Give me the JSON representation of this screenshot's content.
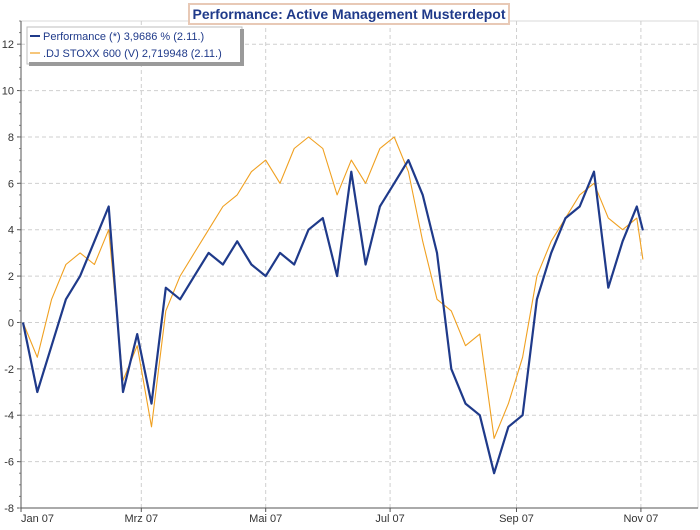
{
  "chart_data": {
    "type": "line",
    "title": "Performance: Active Management Musterdepot",
    "xlabel": "",
    "ylabel": "",
    "ylim": [
      -8,
      13
    ],
    "yticks": [
      -8,
      -6,
      -4,
      -2,
      0,
      2,
      4,
      6,
      8,
      10,
      12
    ],
    "x_tick_labels": [
      "Jan 07",
      "Mrz 07",
      "Mai 07",
      "Jul 07",
      "Sep 07",
      "Nov 07"
    ],
    "grid": true,
    "legend_position": "top-left",
    "series": [
      {
        "name": "Performance (*) 3,9686 % (2.11.)",
        "color": "#1f3a8a",
        "x": [
          "2007-01-02",
          "2007-01-09",
          "2007-01-16",
          "2007-01-23",
          "2007-01-30",
          "2007-02-06",
          "2007-02-13",
          "2007-02-20",
          "2007-02-27",
          "2007-03-06",
          "2007-03-13",
          "2007-03-20",
          "2007-03-27",
          "2007-04-03",
          "2007-04-10",
          "2007-04-17",
          "2007-04-24",
          "2007-05-01",
          "2007-05-08",
          "2007-05-15",
          "2007-05-22",
          "2007-05-29",
          "2007-06-05",
          "2007-06-12",
          "2007-06-19",
          "2007-06-26",
          "2007-07-03",
          "2007-07-10",
          "2007-07-17",
          "2007-07-24",
          "2007-07-31",
          "2007-08-07",
          "2007-08-14",
          "2007-08-21",
          "2007-08-28",
          "2007-09-04",
          "2007-09-11",
          "2007-09-18",
          "2007-09-25",
          "2007-10-02",
          "2007-10-09",
          "2007-10-16",
          "2007-10-23",
          "2007-10-30",
          "2007-11-02"
        ],
        "values": [
          0.0,
          -3.0,
          -1.0,
          1.0,
          2.0,
          3.5,
          5.0,
          -3.0,
          -0.5,
          -3.5,
          1.5,
          1.0,
          2.0,
          3.0,
          2.5,
          3.5,
          2.5,
          2.0,
          3.0,
          2.5,
          4.0,
          4.5,
          2.0,
          6.5,
          2.5,
          5.0,
          6.0,
          7.0,
          5.5,
          3.0,
          -2.0,
          -3.5,
          -4.0,
          -6.5,
          -4.5,
          -4.0,
          1.0,
          3.0,
          4.5,
          5.0,
          6.5,
          1.5,
          3.5,
          5.0,
          3.97
        ]
      },
      {
        "name": ".DJ STOXX 600 (V) 2,719948 (2.11.)",
        "color": "#f0a020",
        "x": [
          "2007-01-02",
          "2007-01-09",
          "2007-01-16",
          "2007-01-23",
          "2007-01-30",
          "2007-02-06",
          "2007-02-13",
          "2007-02-20",
          "2007-02-27",
          "2007-03-06",
          "2007-03-13",
          "2007-03-20",
          "2007-03-27",
          "2007-04-03",
          "2007-04-10",
          "2007-04-17",
          "2007-04-24",
          "2007-05-01",
          "2007-05-08",
          "2007-05-15",
          "2007-05-22",
          "2007-05-29",
          "2007-06-05",
          "2007-06-12",
          "2007-06-19",
          "2007-06-26",
          "2007-07-03",
          "2007-07-10",
          "2007-07-17",
          "2007-07-24",
          "2007-07-31",
          "2007-08-07",
          "2007-08-14",
          "2007-08-21",
          "2007-08-28",
          "2007-09-04",
          "2007-09-11",
          "2007-09-18",
          "2007-09-25",
          "2007-10-02",
          "2007-10-09",
          "2007-10-16",
          "2007-10-23",
          "2007-10-30",
          "2007-11-02"
        ],
        "values": [
          0.0,
          -1.5,
          1.0,
          2.5,
          3.0,
          2.5,
          4.0,
          -2.5,
          -1.0,
          -4.5,
          0.5,
          2.0,
          3.0,
          4.0,
          5.0,
          5.5,
          6.5,
          7.0,
          6.0,
          7.5,
          8.0,
          7.5,
          5.5,
          7.0,
          6.0,
          7.5,
          8.0,
          6.5,
          3.5,
          1.0,
          0.5,
          -1.0,
          -0.5,
          -5.0,
          -3.5,
          -1.5,
          2.0,
          3.5,
          4.5,
          5.5,
          6.0,
          4.5,
          4.0,
          4.5,
          2.72
        ]
      }
    ]
  }
}
